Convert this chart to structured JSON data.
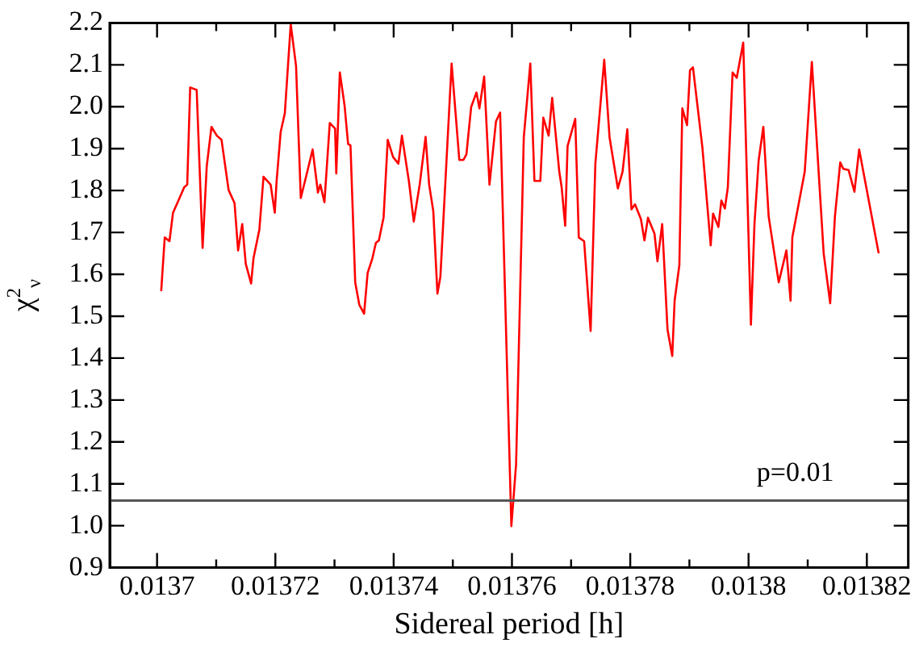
{
  "chart_data": {
    "type": "line",
    "xlabel": "Sidereal period [h]",
    "ylabel": "χ$^{2}$$_{ν}$",
    "xlim": [
      0.013692,
      0.013827
    ],
    "xticks": [
      0.0137,
      {
        "value": 0.01371,
        "label": null
      },
      0.01372,
      {
        "value": 0.01373,
        "label": null
      },
      0.01374,
      {
        "value": 0.01375,
        "label": null
      },
      0.01376,
      {
        "value": 0.01377,
        "label": null
      },
      0.01378,
      {
        "value": 0.01379,
        "label": null
      },
      0.0138,
      {
        "value": 0.01381,
        "label": null
      },
      0.01382
    ],
    "ylim": [
      0.9,
      2.2
    ],
    "yticks": [
      0.9,
      {
        "value": 1,
        "label": "1.0"
      },
      1.1,
      1.2,
      1.3,
      1.4,
      1.5,
      1.6,
      1.7,
      1.8,
      1.9,
      {
        "value": 2,
        "label": "2.0"
      },
      2.1,
      2.2
    ],
    "grid": false,
    "legend": false,
    "marker": "none",
    "line_style": "solid",
    "ref_lines": [
      {
        "axis": "y",
        "value": 1.06,
        "color": "#555555"
      }
    ],
    "annotations": [
      "p=0.01"
    ],
    "series": [
      {
        "color": "#ff0000",
        "x": [
          0.0137007,
          0.0137013,
          0.0137021,
          0.0137027,
          0.0137038,
          0.0137046,
          0.0137051,
          0.0137056,
          0.0137067,
          0.0137077,
          0.0137084,
          0.0137092,
          0.0137101,
          0.0137109,
          0.0137121,
          0.0137131,
          0.0137137,
          0.0137144,
          0.013715,
          0.0137159,
          0.0137163,
          0.0137173,
          0.013718,
          0.0137192,
          0.0137199,
          0.0137202,
          0.0137209,
          0.0137216,
          0.0137226,
          0.0137235,
          0.0137243,
          0.0137254,
          0.0137263,
          0.0137272,
          0.0137276,
          0.0137283,
          0.0137292,
          0.0137301,
          0.0137303,
          0.0137309,
          0.0137317,
          0.0137323,
          0.0137327,
          0.0137335,
          0.0137342,
          0.013735,
          0.0137356,
          0.0137364,
          0.013737,
          0.0137375,
          0.0137383,
          0.013739,
          0.0137399,
          0.0137408,
          0.0137414,
          0.0137426,
          0.0137434,
          0.0137444,
          0.0137454,
          0.013746,
          0.0137467,
          0.0137474,
          0.0137479,
          0.0137498,
          0.0137511,
          0.0137518,
          0.0137523,
          0.0137531,
          0.013754,
          0.0137545,
          0.0137553,
          0.0137562,
          0.0137573,
          0.013758,
          0.0137599,
          0.0137607,
          0.013762,
          0.0137631,
          0.0137638,
          0.0137648,
          0.0137653,
          0.0137662,
          0.0137668,
          0.013768,
          0.0137684,
          0.013769,
          0.0137694,
          0.0137707,
          0.0137713,
          0.0137722,
          0.0137733,
          0.0137741,
          0.0137756,
          0.0137765,
          0.0137779,
          0.0137787,
          0.0137795,
          0.0137802,
          0.0137808,
          0.0137818,
          0.0137824,
          0.013783,
          0.0137841,
          0.0137846,
          0.0137854,
          0.0137863,
          0.0137871,
          0.0137875,
          0.0137883,
          0.0137888,
          0.0137896,
          0.0137901,
          0.0137906,
          0.0137922,
          0.0137936,
          0.013794,
          0.0137949,
          0.0137954,
          0.013796,
          0.0137965,
          0.0137973,
          0.013798,
          0.0137991,
          0.0138004,
          0.013801,
          0.0138017,
          0.0138025,
          0.0138034,
          0.0138051,
          0.0138064,
          0.0138071,
          0.0138074,
          0.0138095,
          0.0138107,
          0.0138127,
          0.0138138,
          0.0138146,
          0.0138155,
          0.013816,
          0.0138169,
          0.0138179,
          0.0138187,
          0.013822
        ],
        "values": [
          1.56,
          1.688,
          1.679,
          1.747,
          1.782,
          1.808,
          1.814,
          2.046,
          2.04,
          1.663,
          1.858,
          1.952,
          1.931,
          1.921,
          1.801,
          1.77,
          1.657,
          1.72,
          1.625,
          1.578,
          1.638,
          1.707,
          1.833,
          1.814,
          1.747,
          1.82,
          1.94,
          1.984,
          2.197,
          2.097,
          1.782,
          1.845,
          1.898,
          1.795,
          1.814,
          1.772,
          1.961,
          1.948,
          1.841,
          2.082,
          2.003,
          1.911,
          1.908,
          1.581,
          1.527,
          1.506,
          1.603,
          1.638,
          1.675,
          1.681,
          1.736,
          1.921,
          1.88,
          1.864,
          1.931,
          1.82,
          1.726,
          1.814,
          1.928,
          1.814,
          1.751,
          1.554,
          1.594,
          2.103,
          1.873,
          1.873,
          1.886,
          1.999,
          2.034,
          1.996,
          2.072,
          1.814,
          1.965,
          1.986,
          0.999,
          1.147,
          1.927,
          2.103,
          1.823,
          1.823,
          1.974,
          1.931,
          2.021,
          1.845,
          1.808,
          1.716,
          1.906,
          1.971,
          1.688,
          1.679,
          1.465,
          1.864,
          2.112,
          1.927,
          1.805,
          1.845,
          1.946,
          1.755,
          1.767,
          1.732,
          1.681,
          1.735,
          1.697,
          1.631,
          1.72,
          1.468,
          1.405,
          1.537,
          1.622,
          1.996,
          1.956,
          2.087,
          2.094,
          1.902,
          1.669,
          1.745,
          1.713,
          1.776,
          1.757,
          1.808,
          2.082,
          2.069,
          2.153,
          1.48,
          1.72,
          1.871,
          1.952,
          1.738,
          1.581,
          1.657,
          1.537,
          1.688,
          1.845,
          2.107,
          1.65,
          1.531,
          1.738,
          1.867,
          1.852,
          1.849,
          1.797,
          1.898,
          1.65
        ]
      }
    ]
  }
}
